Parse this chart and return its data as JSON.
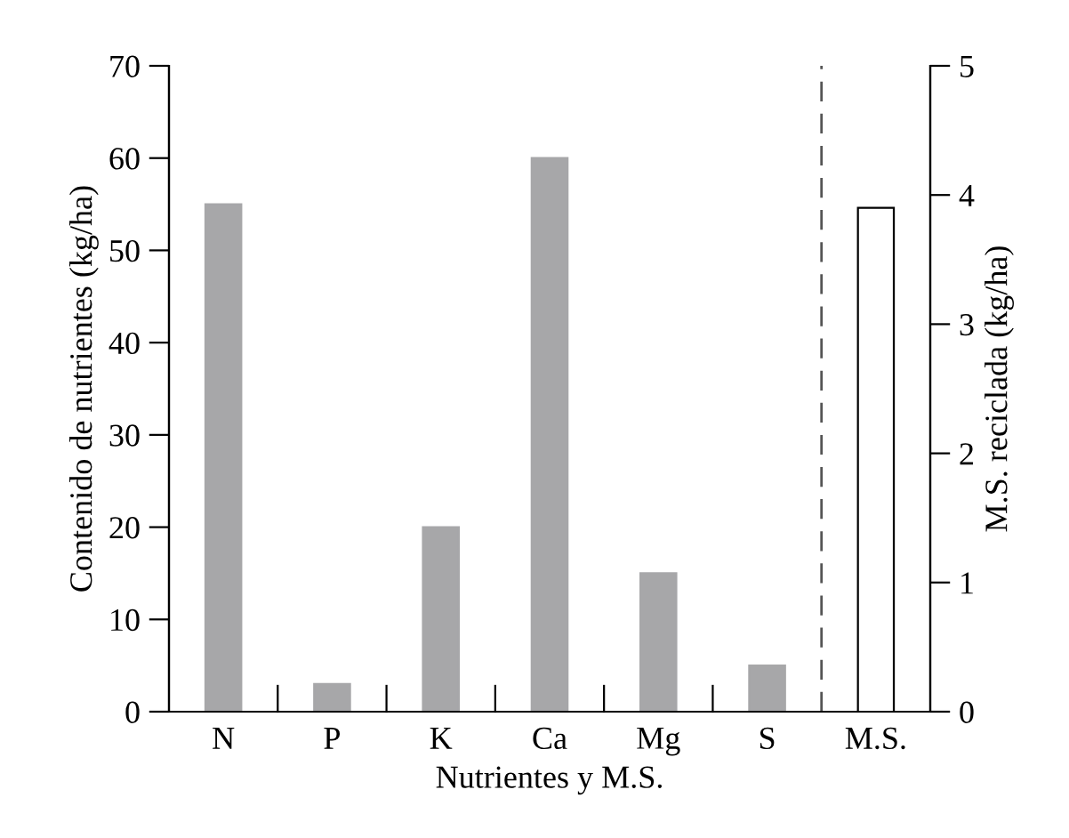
{
  "chart_data": {
    "type": "bar",
    "xlabel": "Nutrientes y M.S.",
    "ylabel": "Contenido de nutrientes (kg/ha)",
    "y2label": "M.S. reciclada (kg/ha)",
    "categories": [
      "N",
      "P",
      "K",
      "Ca",
      "Mg",
      "S",
      "M.S."
    ],
    "series": [
      {
        "color": "#a7a7a9",
        "values": [
          55,
          3,
          20,
          60,
          15,
          5,
          null
        ]
      },
      {
        "color": "#ffffff",
        "axis": "y2",
        "values": [
          null,
          null,
          null,
          null,
          null,
          null,
          3.9
        ]
      }
    ],
    "ylim": [
      0,
      70
    ],
    "yticks": [
      0,
      10,
      20,
      30,
      40,
      50,
      60,
      70
    ],
    "y2lim": [
      0,
      5
    ],
    "y2ticks": [
      0,
      1,
      2,
      3,
      4,
      5
    ],
    "grid": false,
    "legend": false
  }
}
